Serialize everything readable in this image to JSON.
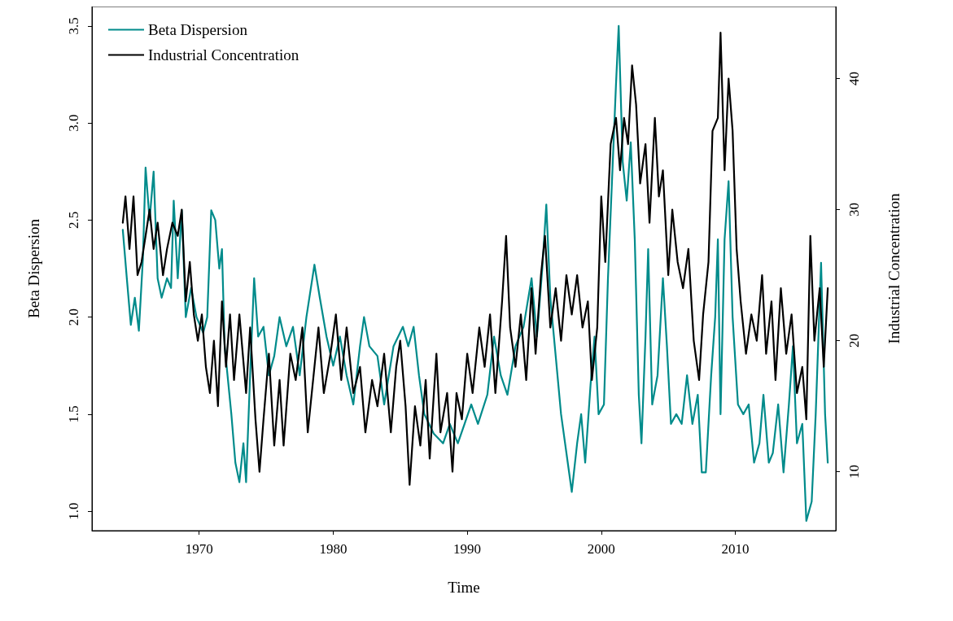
{
  "chart_data": {
    "type": "line",
    "xlabel": "Time",
    "ylabel": "Beta Dispersion",
    "y2label": "Industrial Concentration",
    "xlim": [
      1962,
      2017.5
    ],
    "xticks": [
      1970,
      1980,
      1990,
      2000,
      2010
    ],
    "ylim": [
      0.9,
      3.6
    ],
    "yticks": [
      {
        "value": 1,
        "label": "1.0"
      },
      1.5,
      {
        "value": 2,
        "label": "2.0"
      },
      2.5,
      {
        "value": 3,
        "label": "3.0"
      },
      3.5
    ],
    "y2lim": [
      5.5,
      45.5
    ],
    "y2ticks": [
      10,
      20,
      30,
      40
    ],
    "grid": false,
    "legend": "top left",
    "marker": "none",
    "line_style": "solid",
    "series": [
      {
        "name": "Beta Dispersion",
        "color": "#008b8b",
        "x": [
          1964.3,
          1964.6,
          1964.9,
          1965.2,
          1965.5,
          1965.8,
          1966.0,
          1966.3,
          1966.6,
          1966.9,
          1967.2,
          1967.6,
          1967.9,
          1968.1,
          1968.4,
          1968.7,
          1969.0,
          1969.4,
          1969.8,
          1970.3,
          1970.6,
          1970.9,
          1971.2,
          1971.5,
          1971.7,
          1971.9,
          1972.4,
          1972.7,
          1973.0,
          1973.3,
          1973.5,
          1973.8,
          1974.1,
          1974.4,
          1974.8,
          1975.2,
          1975.6,
          1976.0,
          1976.5,
          1977.0,
          1977.5,
          1978.0,
          1978.6,
          1979.0,
          1979.5,
          1980.0,
          1980.5,
          1981.0,
          1981.5,
          1982.0,
          1982.3,
          1982.7,
          1983.3,
          1983.8,
          1984.5,
          1985.2,
          1985.6,
          1986.0,
          1986.4,
          1986.8,
          1987.5,
          1988.2,
          1988.7,
          1989.3,
          1989.8,
          1990.3,
          1990.8,
          1991.5,
          1992.0,
          1992.5,
          1993.0,
          1993.6,
          1994.2,
          1994.8,
          1995.2,
          1995.6,
          1995.9,
          1996.2,
          1996.6,
          1997.0,
          1997.5,
          1997.8,
          1998.2,
          1998.5,
          1998.8,
          1999.2,
          1999.5,
          1999.8,
          2000.2,
          2000.5,
          2000.8,
          2001.1,
          2001.3,
          2001.6,
          2001.9,
          2002.2,
          2002.5,
          2002.8,
          2003.0,
          2003.3,
          2003.5,
          2003.8,
          2004.2,
          2004.6,
          2004.9,
          2005.2,
          2005.6,
          2006.0,
          2006.4,
          2006.8,
          2007.2,
          2007.5,
          2007.8,
          2008.2,
          2008.5,
          2008.7,
          2008.9,
          2009.2,
          2009.5,
          2009.8,
          2010.2,
          2010.6,
          2011.0,
          2011.4,
          2011.8,
          2012.1,
          2012.5,
          2012.8,
          2013.2,
          2013.6,
          2014.0,
          2014.3,
          2014.6,
          2015.0,
          2015.3,
          2015.7,
          2016.0,
          2016.4,
          2016.7,
          2016.9
        ],
        "values": [
          2.45,
          2.2,
          1.96,
          2.1,
          1.93,
          2.3,
          2.77,
          2.5,
          2.75,
          2.2,
          2.1,
          2.2,
          2.15,
          2.6,
          2.2,
          2.55,
          2.0,
          2.15,
          2.0,
          1.92,
          2.0,
          2.55,
          2.5,
          2.25,
          2.35,
          1.85,
          1.5,
          1.25,
          1.15,
          1.35,
          1.15,
          1.7,
          2.2,
          1.9,
          1.95,
          1.7,
          1.8,
          2.0,
          1.85,
          1.95,
          1.7,
          2.0,
          2.27,
          2.1,
          1.9,
          1.75,
          1.9,
          1.7,
          1.55,
          1.85,
          2.0,
          1.85,
          1.8,
          1.55,
          1.85,
          1.95,
          1.85,
          1.95,
          1.7,
          1.5,
          1.4,
          1.35,
          1.45,
          1.35,
          1.45,
          1.55,
          1.45,
          1.6,
          1.9,
          1.7,
          1.6,
          1.85,
          1.95,
          2.2,
          1.9,
          2.25,
          2.58,
          2.1,
          1.8,
          1.5,
          1.25,
          1.1,
          1.35,
          1.5,
          1.25,
          1.65,
          1.9,
          1.5,
          1.55,
          2.2,
          2.7,
          3.2,
          3.5,
          2.8,
          2.6,
          2.9,
          2.4,
          1.6,
          1.35,
          1.9,
          2.35,
          1.55,
          1.7,
          2.2,
          1.85,
          1.45,
          1.5,
          1.45,
          1.7,
          1.45,
          1.6,
          1.2,
          1.2,
          1.7,
          2.0,
          2.4,
          1.5,
          2.4,
          2.7,
          2.0,
          1.55,
          1.5,
          1.55,
          1.25,
          1.35,
          1.6,
          1.25,
          1.3,
          1.55,
          1.2,
          1.55,
          1.85,
          1.35,
          1.45,
          0.95,
          1.05,
          1.5,
          2.28,
          1.5,
          1.25
        ]
      },
      {
        "name": "Industrial Concentration",
        "color": "#000000",
        "axis": "y2",
        "x": [
          1964.3,
          1964.5,
          1964.8,
          1965.1,
          1965.4,
          1965.7,
          1966.0,
          1966.3,
          1966.6,
          1966.9,
          1967.3,
          1967.6,
          1968.0,
          1968.4,
          1968.7,
          1969.0,
          1969.3,
          1969.6,
          1969.9,
          1970.2,
          1970.5,
          1970.8,
          1971.1,
          1971.4,
          1971.7,
          1972.0,
          1972.3,
          1972.6,
          1973.0,
          1973.5,
          1973.8,
          1974.2,
          1974.5,
          1974.8,
          1975.2,
          1975.6,
          1976.0,
          1976.3,
          1976.8,
          1977.2,
          1977.7,
          1978.1,
          1978.5,
          1978.9,
          1979.3,
          1979.8,
          1980.2,
          1980.6,
          1981.0,
          1981.5,
          1982.0,
          1982.4,
          1982.9,
          1983.3,
          1983.8,
          1984.3,
          1984.7,
          1985.0,
          1985.4,
          1985.7,
          1986.1,
          1986.5,
          1986.9,
          1987.2,
          1987.7,
          1988.0,
          1988.5,
          1988.9,
          1989.2,
          1989.6,
          1990.0,
          1990.4,
          1990.9,
          1991.3,
          1991.7,
          1992.1,
          1992.6,
          1992.9,
          1993.2,
          1993.6,
          1994.0,
          1994.4,
          1994.8,
          1995.1,
          1995.5,
          1995.8,
          1996.2,
          1996.6,
          1997.0,
          1997.4,
          1997.8,
          1998.2,
          1998.6,
          1999.0,
          1999.3,
          1999.7,
          2000.0,
          2000.3,
          2000.7,
          2001.1,
          2001.4,
          2001.7,
          2002.0,
          2002.3,
          2002.6,
          2002.9,
          2003.3,
          2003.6,
          2004.0,
          2004.3,
          2004.6,
          2005.0,
          2005.3,
          2005.7,
          2006.1,
          2006.5,
          2006.9,
          2007.3,
          2007.6,
          2008.0,
          2008.3,
          2008.7,
          2008.9,
          2009.2,
          2009.5,
          2009.8,
          2010.1,
          2010.4,
          2010.8,
          2011.2,
          2011.6,
          2012.0,
          2012.3,
          2012.7,
          2013.0,
          2013.4,
          2013.8,
          2014.2,
          2014.6,
          2015.0,
          2015.3,
          2015.6,
          2015.9,
          2016.3,
          2016.6,
          2016.9
        ],
        "values": [
          29,
          31,
          27,
          31,
          25,
          26,
          28,
          30,
          27,
          29,
          25,
          27,
          29,
          28,
          30,
          23,
          26,
          22,
          20,
          22,
          18,
          16,
          20,
          15,
          23,
          18,
          22,
          17,
          22,
          16,
          21,
          14,
          10,
          14,
          19,
          12,
          17,
          12,
          19,
          17,
          21,
          13,
          17,
          21,
          16,
          19,
          22,
          17,
          21,
          16,
          18,
          13,
          17,
          15,
          19,
          13,
          18,
          20,
          15,
          9,
          15,
          12,
          17,
          11,
          19,
          13,
          16,
          10,
          16,
          14,
          19,
          16,
          21,
          18,
          22,
          16,
          23,
          28,
          21,
          18,
          22,
          17,
          24,
          19,
          25,
          28,
          21,
          24,
          20,
          25,
          22,
          25,
          21,
          23,
          17,
          21,
          31,
          26,
          35,
          37,
          33,
          37,
          35,
          41,
          38,
          32,
          35,
          29,
          37,
          31,
          33,
          25,
          30,
          26,
          24,
          27,
          20,
          17,
          22,
          26,
          36,
          37,
          43.5,
          33,
          40,
          36,
          27,
          23,
          19,
          22,
          20,
          25,
          19,
          23,
          17,
          24,
          19,
          22,
          16,
          18,
          14,
          28,
          20,
          24,
          18,
          24
        ]
      }
    ]
  }
}
